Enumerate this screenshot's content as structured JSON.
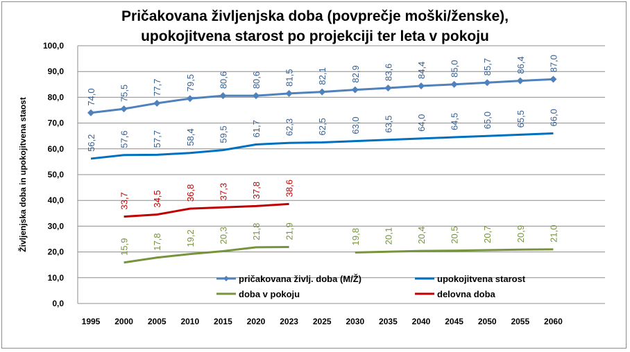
{
  "chart_data": {
    "type": "line",
    "title_lines": [
      "Pričakovana življenjska doba (povprečje moški/ženske),",
      "upokojitvena starost po projekciji ter leta v pokoju"
    ],
    "ylabel": "Življenjska doba in upokojitvena staost",
    "xlabel": "",
    "ylim": [
      0,
      100
    ],
    "ytick_step": 10,
    "yticks": [
      "0,0",
      "10,0",
      "20,0",
      "30,0",
      "40,0",
      "50,0",
      "60,0",
      "70,0",
      "80,0",
      "90,0",
      "100,0"
    ],
    "grid": true,
    "legend_position": "bottom-center-inside",
    "categories": [
      "1995",
      "2000",
      "2005",
      "2010",
      "2015",
      "2020",
      "2023",
      "2025",
      "2030",
      "2035",
      "2040",
      "2045",
      "2050",
      "2055",
      "2060"
    ],
    "series": [
      {
        "name": "pričakovana življ. doba (M/Ž)",
        "color": "#4f81bd",
        "marker": "diamond",
        "values": [
          74.0,
          75.5,
          77.7,
          79.5,
          80.6,
          80.6,
          81.5,
          82.1,
          82.9,
          83.6,
          84.4,
          85.0,
          85.7,
          86.4,
          87.0
        ]
      },
      {
        "name": "upokojitvena starost",
        "color": "#0070c0",
        "marker": "none",
        "values": [
          56.2,
          57.6,
          57.7,
          58.4,
          59.5,
          61.7,
          62.3,
          62.5,
          63.0,
          63.5,
          64.0,
          64.5,
          65.0,
          65.5,
          66.0
        ]
      },
      {
        "name": "doba v pokoju",
        "color": "#77933c",
        "marker": "none",
        "values": [
          null,
          15.9,
          17.8,
          19.2,
          20.3,
          21.8,
          21.9,
          null,
          19.8,
          20.1,
          20.4,
          20.5,
          20.7,
          20.9,
          21.0
        ]
      },
      {
        "name": "delovna doba",
        "color": "#c00000",
        "marker": "none",
        "values": [
          null,
          33.7,
          34.5,
          36.8,
          37.3,
          37.8,
          38.6,
          null,
          null,
          null,
          null,
          null,
          null,
          null,
          null
        ]
      }
    ],
    "label_colors": [
      "#376092",
      "#376092",
      "#77933c",
      "#c00000"
    ]
  }
}
